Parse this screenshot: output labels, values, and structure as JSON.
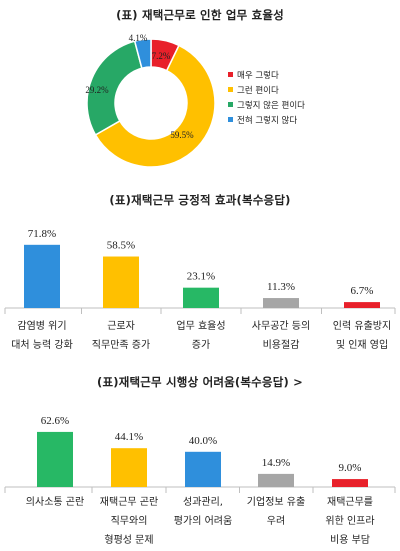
{
  "chart_data": [
    {
      "type": "pie",
      "title": "(표) 재택근무로 인한 업무 효율성",
      "categories": [
        "매우 그렇다",
        "그런 편이다",
        "그렇지 않은 편이다",
        "전혀 그렇지 않다"
      ],
      "values": [
        7.2,
        59.5,
        29.2,
        4.1
      ],
      "value_labels": [
        "7.2%",
        "59.5%",
        "29.2%",
        "4.1%"
      ],
      "colors": [
        "#e8202a",
        "#ffc000",
        "#27a866",
        "#2f8fdc"
      ],
      "legend": "right"
    },
    {
      "type": "bar",
      "title": "(표)재택근무 긍정적 효과(복수응답)",
      "categories": [
        [
          "감염병 위기",
          "대처 능력 강화"
        ],
        [
          "근로자",
          "직무만족 증가"
        ],
        [
          "업무 효율성",
          "증가"
        ],
        [
          "사무공간 등의",
          "비용절감"
        ],
        [
          "인력 유출방지",
          "및 인재 영입"
        ]
      ],
      "values": [
        71.8,
        58.5,
        23.1,
        11.3,
        6.7
      ],
      "value_labels": [
        "71.8%",
        "58.5%",
        "23.1%",
        "11.3%",
        "6.7%"
      ],
      "colors": [
        "#2f8fdc",
        "#ffc000",
        "#27b865",
        "#a6a6a6",
        "#e8202a"
      ],
      "ylim": [
        0,
        80
      ]
    },
    {
      "type": "bar",
      "title": "(표)재택근무 시행상 어려움(복수응답) >",
      "categories": [
        [
          "의사소통 곤란"
        ],
        [
          "재택근무 곤란",
          "직무와의",
          "형평성 문제"
        ],
        [
          "성과관리,",
          "평가의 어려움"
        ],
        [
          "기업정보 유출",
          "우려"
        ],
        [
          "재택근무를",
          "위한 인프라",
          "비용 부담"
        ]
      ],
      "values": [
        62.6,
        44.1,
        40.0,
        14.9,
        9.0
      ],
      "value_labels": [
        "62.6%",
        "44.1%",
        "40.0%",
        "14.9%",
        "9.0%"
      ],
      "colors": [
        "#27b865",
        "#ffc000",
        "#2f8fdc",
        "#a6a6a6",
        "#e8202a"
      ],
      "ylim": [
        0,
        80
      ]
    }
  ]
}
